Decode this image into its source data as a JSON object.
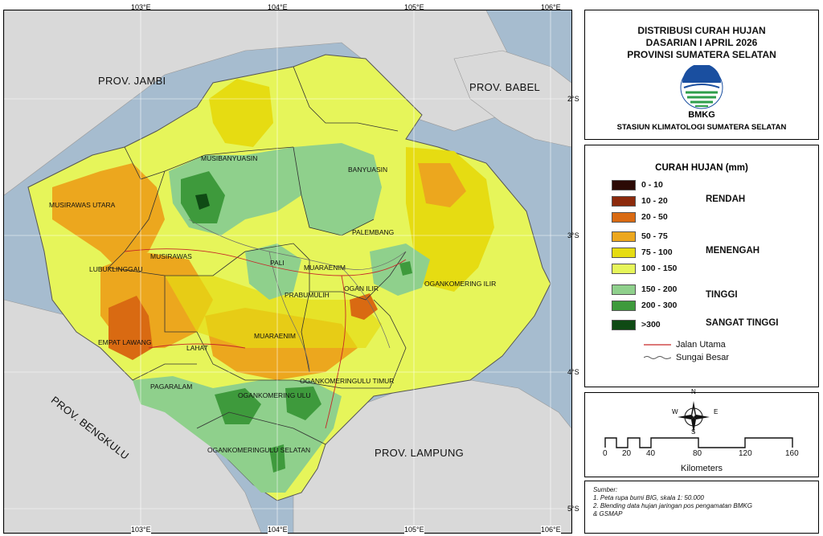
{
  "map": {
    "coords_top": [
      "103°E",
      "104°E",
      "105°E",
      "106°E"
    ],
    "coords_bottom": [
      "103°E",
      "104°E",
      "105°E",
      "106°E"
    ],
    "coords_right": [
      "2°S",
      "3°S",
      "4°S",
      "5°S"
    ],
    "provinces": {
      "jambi": "PROV. JAMBI",
      "babel": "PROV. BABEL",
      "bengkulu": "PROV. BENGKULU",
      "lampung": "PROV. LAMPUNG"
    },
    "regions": {
      "musibanyuasin": "MUSIBANYUASIN",
      "banyuasin": "BANYUASIN",
      "musirawas_utara": "MUSIRAWAS UTARA",
      "palembang": "PALEMBANG",
      "musirawas": "MUSIRAWAS",
      "lubuklinggau": "LUBUKLINGGAU",
      "pali": "PALI",
      "muaraenim_n": "MUARAENIM",
      "prabumulih": "PRABUMULIH",
      "ogan_ilir": "OGAN ILIR",
      "ogankomering_ilir": "OGANKOMERING ILIR",
      "empat_lawang": "EMPAT LAWANG",
      "lahat": "LAHAT",
      "muaraenim_s": "MUARAENIM",
      "oku_timur": "OGANKOMERINGULU TIMUR",
      "pagaralam": "PAGARALAM",
      "oku": "OGANKOMERING ULU",
      "oku_selatan": "OGANKOMERINGULU SELATAN"
    }
  },
  "title": {
    "line1": "DISTRIBUSI CURAH HUJAN",
    "line2": "DASARIAN I APRIL 2026",
    "line3": "PROVINSI SUMATERA SELATAN",
    "agency": "BMKG",
    "station": "STASIUN KLIMATOLOGI SUMATERA SELATAN"
  },
  "legend": {
    "title": "CURAH HUJAN (mm)",
    "classes": [
      {
        "label": "0 - 10",
        "color": "#2b0a05"
      },
      {
        "label": "10 - 20",
        "color": "#8c2a0c"
      },
      {
        "label": "20 - 50",
        "color": "#d96a12"
      },
      {
        "label": "50 - 75",
        "color": "#eca71e"
      },
      {
        "label": "75 - 100",
        "color": "#e6dc12"
      },
      {
        "label": "100 - 150",
        "color": "#e6f55a"
      },
      {
        "label": "150 - 200",
        "color": "#8fd08c"
      },
      {
        "label": "200 - 300",
        "color": "#3e9a3c"
      },
      {
        "label": ">300",
        "color": "#0f4a14"
      }
    ],
    "categories": {
      "rendah": "RENDAH",
      "menengah": "MENENGAH",
      "tinggi": "TINGGI",
      "sangat_tinggi": "SANGAT TINGGI"
    },
    "lines": {
      "road": "Jalan Utama",
      "river": "Sungai Besar"
    }
  },
  "scale": {
    "ticks": [
      "0",
      "20",
      "40",
      "80",
      "120",
      "160"
    ],
    "unit": "Kilometers",
    "compass": {
      "n": "N",
      "s": "S",
      "e": "E",
      "w": "W"
    }
  },
  "source": {
    "heading": "Sumber:",
    "line1": "1. Peta rupa bumi BIG, skala 1: 50.000",
    "line2": "2. Blending data hujan jaringan pos pengamatan BMKG",
    "line3": "& GSMAP"
  }
}
